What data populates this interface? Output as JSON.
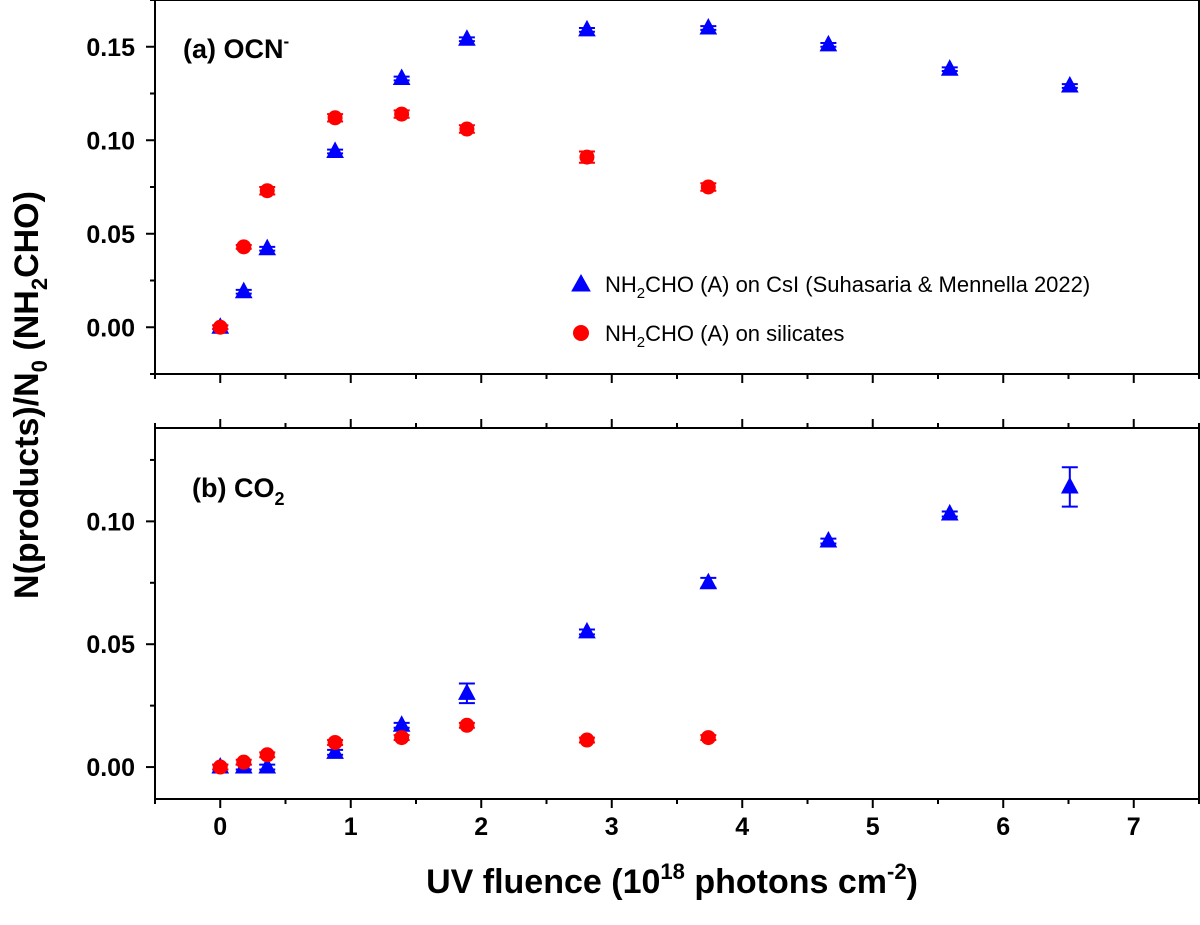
{
  "chart_data": {
    "type": "scatter",
    "shared_x": {
      "xlabel_main": "UV fluence (10",
      "xlabel_sup": "18",
      "xlabel_mid": " photons cm",
      "xlabel_sup2": "-2",
      "xlabel_end": ")",
      "xlim": [
        -0.5,
        7.5
      ],
      "ticks": [
        0,
        1,
        2,
        3,
        4,
        5,
        6,
        7
      ],
      "tick_labels": [
        "0",
        "1",
        "2",
        "3",
        "4",
        "5",
        "6",
        "7"
      ]
    },
    "ylabel": {
      "part1": "N(products)/N",
      "sub1": "0",
      "part2": " (NH",
      "sub2": "2",
      "part3": "CHO)"
    },
    "legend": [
      {
        "name": "NH2CHO (A) on CsI (Suhasaria & Mennella 2022)",
        "pre": "NH",
        "sub": "2",
        "post": "CHO (A) on CsI (Suhasaria & Mennella 2022)",
        "color": "#0000ff",
        "marker": "triangle"
      },
      {
        "name": "NH2CHO (A) on silicates",
        "pre": "NH",
        "sub": "2",
        "post": "CHO (A) on silicates",
        "color": "#ff0000",
        "marker": "circle"
      }
    ],
    "panels": [
      {
        "label_main": "(a) OCN",
        "label_sup": "-",
        "ylim": [
          -0.025,
          0.175
        ],
        "yticks": [
          0.0,
          0.05,
          0.1,
          0.15
        ],
        "ytick_labels": [
          "0.00",
          "0.05",
          "0.10",
          "0.15"
        ],
        "series": [
          {
            "name": "NH2CHO (A) on CsI (Suhasaria & Mennella 2022)",
            "color": "#0000ff",
            "marker": "triangle",
            "x": [
              0.0,
              0.18,
              0.36,
              0.88,
              1.39,
              1.89,
              2.81,
              3.74,
              4.66,
              5.59,
              6.51
            ],
            "y": [
              0.0,
              0.019,
              0.042,
              0.094,
              0.133,
              0.154,
              0.159,
              0.16,
              0.151,
              0.138,
              0.129
            ],
            "err": [
              0.001,
              0.001,
              0.001,
              0.001,
              0.001,
              0.001,
              0.001,
              0.001,
              0.001,
              0.001,
              0.001
            ]
          },
          {
            "name": "NH2CHO (A) on silicates",
            "color": "#ff0000",
            "marker": "circle",
            "x": [
              0.0,
              0.18,
              0.36,
              0.88,
              1.39,
              1.89,
              2.81,
              3.74
            ],
            "y": [
              0.0,
              0.043,
              0.073,
              0.112,
              0.114,
              0.106,
              0.091,
              0.075
            ],
            "err": [
              0.001,
              0.001,
              0.002,
              0.002,
              0.002,
              0.002,
              0.003,
              0.002
            ]
          }
        ]
      },
      {
        "label_main": "(b) CO",
        "label_sub": "2",
        "ylim": [
          -0.013,
          0.138
        ],
        "yticks": [
          0.0,
          0.05,
          0.1
        ],
        "ytick_labels": [
          "0.00",
          "0.05",
          "0.10"
        ],
        "series": [
          {
            "name": "NH2CHO (A) on CsI (Suhasaria & Mennella 2022)",
            "color": "#0000ff",
            "marker": "triangle",
            "x": [
              0.0,
              0.18,
              0.36,
              0.88,
              1.39,
              1.89,
              2.81,
              3.74,
              4.66,
              5.59,
              6.51
            ],
            "y": [
              0.0,
              0.0,
              0.0,
              0.006,
              0.017,
              0.03,
              0.055,
              0.075,
              0.092,
              0.103,
              0.114
            ],
            "err": [
              0.001,
              0.001,
              0.001,
              0.001,
              0.001,
              0.004,
              0.001,
              0.002,
              0.001,
              0.001,
              0.008
            ]
          },
          {
            "name": "NH2CHO (A) on silicates",
            "color": "#ff0000",
            "marker": "circle",
            "x": [
              0.0,
              0.18,
              0.36,
              0.88,
              1.39,
              1.89,
              2.81,
              3.74
            ],
            "y": [
              0.0,
              0.002,
              0.005,
              0.01,
              0.012,
              0.017,
              0.011,
              0.012
            ],
            "err": [
              0.001,
              0.001,
              0.001,
              0.001,
              0.001,
              0.001,
              0.001,
              0.001
            ]
          }
        ]
      }
    ]
  }
}
